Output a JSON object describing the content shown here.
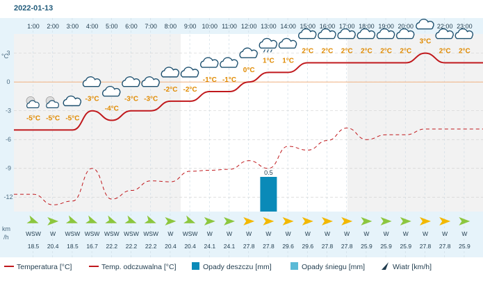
{
  "date": "2022-01-13",
  "units": {
    "temp": "°C",
    "wind_top": "km",
    "wind_bottom": "/h"
  },
  "chart_data": {
    "type": "line",
    "x": [
      "1:00",
      "2:00",
      "3:00",
      "4:00",
      "5:00",
      "6:00",
      "7:00",
      "8:00",
      "9:00",
      "10:00",
      "11:00",
      "12:00",
      "13:00",
      "14:00",
      "15:00",
      "16:00",
      "17:00",
      "18:00",
      "19:00",
      "20:00",
      "21:00",
      "22:00",
      "23:00"
    ],
    "y_ticks": [
      3,
      0,
      -3,
      -6,
      -9,
      -12
    ],
    "ylim": [
      -13.5,
      5
    ],
    "series": [
      {
        "name": "Temperatura [°C]",
        "color": "#c0181c",
        "values": [
          -5,
          -5,
          -5,
          -3,
          -4,
          -3,
          -3,
          -2,
          -2,
          -1,
          -1,
          0,
          1,
          1,
          2,
          2,
          2,
          2,
          2,
          2,
          3,
          2,
          2
        ]
      },
      {
        "name": "Temp. odczuwalna [°C]",
        "color": "#c0181c",
        "values": [
          -11.7,
          -12.8,
          -12.4,
          -9,
          -12.2,
          -11.3,
          -10.3,
          -10.4,
          -9.3,
          -9.2,
          -9.1,
          -8.2,
          -9,
          -6.7,
          -7.1,
          -6.1,
          -4.8,
          -6,
          -5.5,
          -5.5,
          -4.9,
          -4.9,
          -4.9
        ]
      },
      {
        "name": "Opady deszczu [mm]",
        "color": "#0a8ab8",
        "values": [
          0,
          0,
          0,
          0,
          0,
          0,
          0,
          0,
          0,
          0,
          0,
          0,
          0.5,
          0,
          0,
          0,
          0,
          0,
          0,
          0,
          0,
          0,
          0
        ]
      },
      {
        "name": "Opady śniegu [mm]",
        "color": "#5bbad6",
        "values": [
          0,
          0,
          0,
          0,
          0,
          0,
          0,
          0,
          0,
          0,
          0,
          0,
          0,
          0,
          0,
          0,
          0,
          0,
          0,
          0,
          0,
          0,
          0
        ]
      }
    ],
    "temp_labels": [
      "-5°C",
      "-5°C",
      "-5°C",
      "-3°C",
      "-4°C",
      "-3°C",
      "-3°C",
      "-2°C",
      "-2°C",
      "-1°C",
      "-1°C",
      "0°C",
      "1°C",
      "1°C",
      "2°C",
      "2°C",
      "2°C",
      "2°C",
      "2°C",
      "2°C",
      "3°C",
      "2°C",
      "2°C"
    ],
    "precip_labels": [
      "",
      "",
      "",
      "",
      "",
      "",
      "",
      "",
      "",
      "",
      "",
      "",
      "0.5",
      "",
      "",
      "",
      "",
      "",
      "",
      "",
      "",
      "",
      ""
    ],
    "icons": [
      "night-partly-cloudy-icon",
      "night-partly-cloudy-icon",
      "cloud-icon",
      "cloud-icon",
      "cloud-icon",
      "cloud-icon",
      "cloud-icon",
      "cloud-icon",
      "cloud-icon",
      "cloud-icon",
      "cloud-icon",
      "cloud-icon",
      "cloud-rain-icon",
      "cloud-icon",
      "cloud-icon",
      "cloud-icon",
      "cloud-icon",
      "cloud-icon",
      "cloud-icon",
      "cloud-icon",
      "cloud-icon",
      "cloud-icon",
      "cloud-icon"
    ],
    "wind_dir": [
      "WSW",
      "W",
      "WSW",
      "WSW",
      "WSW",
      "WSW",
      "WSW",
      "W",
      "WSW",
      "W",
      "W",
      "W",
      "W",
      "W",
      "W",
      "W",
      "W",
      "W",
      "W",
      "W",
      "W",
      "W",
      "W"
    ],
    "wind_speed": [
      "18.5",
      "20.4",
      "18.5",
      "16.7",
      "22.2",
      "22.2",
      "22.2",
      "20.4",
      "20.4",
      "24.1",
      "24.1",
      "27.8",
      "27.8",
      "29.6",
      "29.6",
      "27.8",
      "27.8",
      "25.9",
      "25.9",
      "25.9",
      "27.8",
      "27.8",
      "25.9"
    ],
    "wind_arrow_colors": [
      "#8cc63e",
      "#8cc63e",
      "#8cc63e",
      "#8cc63e",
      "#8cc63e",
      "#8cc63e",
      "#8cc63e",
      "#8cc63e",
      "#8cc63e",
      "#8cc63e",
      "#8cc63e",
      "#f2b800",
      "#f2b800",
      "#f2b800",
      "#f2b800",
      "#f2b800",
      "#f2b800",
      "#8cc63e",
      "#8cc63e",
      "#8cc63e",
      "#f2b800",
      "#f2b800",
      "#8cc63e"
    ],
    "grid": true
  },
  "legend": [
    {
      "label": "Temperatura [°C]",
      "kind": "line",
      "color": "#c0181c"
    },
    {
      "label": "Temp. odczuwalna [°C]",
      "kind": "line",
      "color": "#c0181c"
    },
    {
      "label": "Opady deszczu [mm]",
      "kind": "box",
      "color": "#0a8ab8"
    },
    {
      "label": "Opady śniegu [mm]",
      "kind": "box",
      "color": "#5bbad6"
    },
    {
      "label": "Wiatr [km/h]",
      "kind": "arrow",
      "color": "#1f3b4d"
    }
  ]
}
